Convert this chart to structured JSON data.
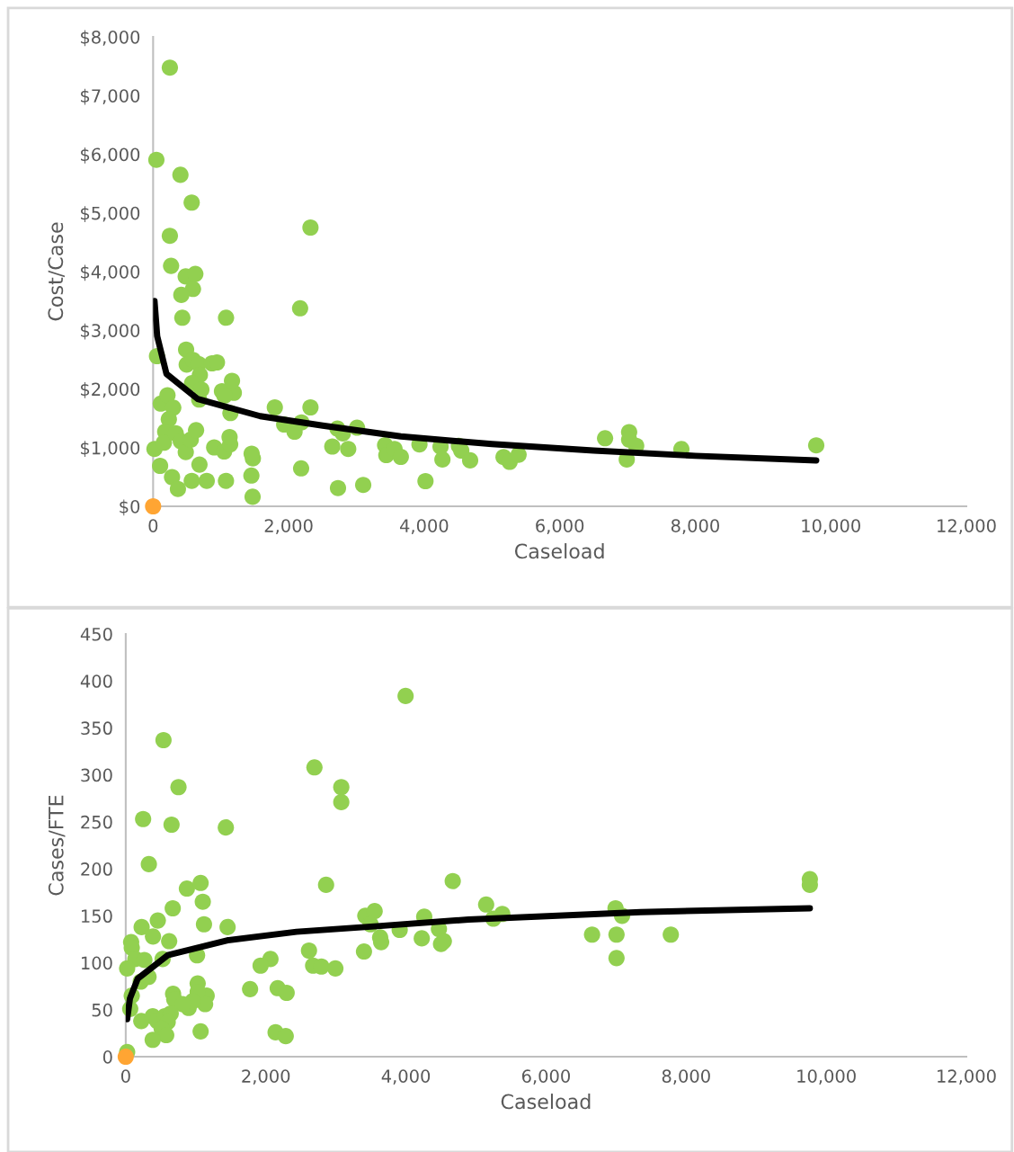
{
  "chart_data": [
    {
      "type": "scatter",
      "xlabel": "Caseload",
      "ylabel": "Cost/Case",
      "grid": false,
      "marker": "circle",
      "xlim": [
        0,
        12000
      ],
      "xticks": [
        0,
        {
          "value": 2000,
          "label": "2,000"
        },
        {
          "value": 4000,
          "label": "4,000"
        },
        {
          "value": 6000,
          "label": "6,000"
        },
        {
          "value": 8000,
          "label": "8,000"
        },
        {
          "value": 10000,
          "label": "10,000"
        },
        {
          "value": 12000,
          "label": "12,000"
        }
      ],
      "ylim": [
        0,
        8000
      ],
      "yticks": [
        {
          "value": 0,
          "label": "$0"
        },
        {
          "value": 1000,
          "label": "$1,000"
        },
        {
          "value": 2000,
          "label": "$2,000"
        },
        {
          "value": 3000,
          "label": "$3,000"
        },
        {
          "value": 4000,
          "label": "$4,000"
        },
        {
          "value": 5000,
          "label": "$5,000"
        },
        {
          "value": 6000,
          "label": "$6,000"
        },
        {
          "value": 7000,
          "label": "$7,000"
        },
        {
          "value": 8000,
          "label": "$8,000"
        }
      ],
      "series": [
        {
          "type": "scatter",
          "color": "#92d050",
          "x": [
            247,
            48,
            403,
            569,
            247,
            265,
            481,
            623,
            588,
            416,
            431,
            1076,
            2169,
            2322,
            57,
            487,
            496,
            588,
            671,
            690,
            869,
            942,
            574,
            712,
            680,
            1016,
            1191,
            1164,
            1141,
            1053,
            113,
            212,
            297,
            232,
            20,
            103,
            279,
            366,
            570,
            684,
            791,
            1075,
            1468,
            1450,
            1472,
            1454,
            178,
            159,
            334,
            408,
            482,
            556,
            634,
            901,
            1048,
            1137,
            1128,
            1796,
            2322,
            1934,
            2087,
            2189,
            2184,
            2728,
            3100,
            2644,
            2879,
            2720,
            2799,
            3009,
            3423,
            3441,
            3562,
            3655,
            3930,
            4019,
            4241,
            4269,
            4512,
            4547,
            4678,
            5171,
            5261,
            5393,
            6669,
            7024,
            7024,
            7128,
            6989,
            7795,
            9785
          ],
          "values": [
            7476,
            5905,
            5649,
            5176,
            4610,
            4098,
            3917,
            3960,
            3704,
            3603,
            3214,
            3214,
            3375,
            4751,
            2559,
            2671,
            2415,
            2495,
            2426,
            2239,
            2437,
            2452,
            2097,
            1989,
            1819,
            1962,
            1935,
            2138,
            1589,
            1885,
            1750,
            1893,
            1681,
            1484,
            978,
            690,
            498,
            296,
            434,
            711,
            434,
            434,
            162,
            524,
            817,
            897,
            1272,
            1084,
            1243,
            1110,
            924,
            1137,
            1297,
            1004,
            935,
            1057,
            1180,
            1686,
            1686,
            1395,
            1272,
            1430,
            647,
            311,
            365,
            1019,
            978,
            1324,
            1243,
            1340,
            1042,
            873,
            978,
            843,
            1056,
            429,
            1016,
            798,
            1031,
            950,
            783,
            840,
            759,
            880,
            1160,
            1264,
            1136,
            1031,
            798,
            975,
            1039
          ]
        },
        {
          "type": "scatter",
          "color": "#ffa533",
          "x": [
            0
          ],
          "values": [
            0
          ]
        },
        {
          "type": "line",
          "color": "#000000",
          "line_style": "solid",
          "marker": "none",
          "x": [
            20,
            60,
            197,
            657,
            1580,
            2502,
            3655,
            5000,
            6500,
            8000,
            9785
          ],
          "values": [
            3500,
            2900,
            2256,
            1830,
            1536,
            1376,
            1191,
            1060,
            950,
            860,
            782
          ]
        }
      ]
    },
    {
      "type": "scatter",
      "xlabel": "Caseload",
      "ylabel": "Cases/FTE",
      "grid": false,
      "marker": "circle",
      "xlim": [
        0,
        12000
      ],
      "xticks": [
        0,
        {
          "value": 2000,
          "label": "2,000"
        },
        {
          "value": 4000,
          "label": "4,000"
        },
        {
          "value": 6000,
          "label": "6,000"
        },
        {
          "value": 8000,
          "label": "8,000"
        },
        {
          "value": 10000,
          "label": "10,000"
        },
        {
          "value": 12000,
          "label": "12,000"
        }
      ],
      "ylim": [
        0,
        450
      ],
      "yticks": [
        0,
        50,
        100,
        150,
        200,
        250,
        300,
        350,
        400,
        450
      ],
      "series": [
        {
          "type": "scatter",
          "color": "#92d050",
          "x": [
            539,
            753,
            248,
            654,
            1429,
            330,
            873,
            1069,
            1100,
            671,
            458,
            227,
            1117,
            1454,
            389,
            620,
            77,
            86,
            137,
            266,
            526,
            1018,
            20,
            325,
            214,
            1775,
            2169,
            2297,
            2139,
            2284,
            1069,
            1027,
            1155,
            1133,
            898,
            676,
            693,
            1027,
            954,
            812,
            64,
            86,
            222,
            385,
            449,
            556,
            642,
            599,
            513,
            578,
            385,
            20,
            3995,
            2694,
            3077,
            3077,
            2860,
            4668,
            2616,
            2675,
            2793,
            2993,
            3401,
            3420,
            3553,
            3495,
            3632,
            3646,
            3911,
            4226,
            4261,
            4471,
            4501,
            4541,
            5145,
            5248,
            5375,
            6657,
            6992,
            7085,
            7006,
            7006,
            7781,
            9766,
            9766,
            2066,
            1925
          ],
          "values": [
            337,
            287,
            253,
            247,
            244,
            205,
            179,
            185,
            165,
            158,
            145,
            138,
            141,
            138,
            128,
            123,
            122,
            116,
            104,
            103,
            104,
            108,
            94,
            85,
            80,
            72,
            73,
            68,
            26,
            22,
            27,
            78,
            65,
            56,
            52,
            67,
            61,
            69,
            59,
            56,
            51,
            65,
            38,
            43,
            38,
            43,
            46,
            37,
            30,
            23,
            18,
            5,
            384,
            308,
            287,
            271,
            183,
            187,
            113,
            97,
            96,
            94,
            112,
            150,
            155,
            141,
            127,
            122,
            135,
            126,
            149,
            136,
            120,
            123,
            162,
            147,
            152,
            130,
            158,
            150,
            130,
            105,
            130,
            189,
            183,
            104,
            97
          ]
        },
        {
          "type": "scatter",
          "color": "#ffa533",
          "x": [
            0
          ],
          "values": [
            0
          ]
        },
        {
          "type": "line",
          "color": "#000000",
          "line_style": "solid",
          "marker": "none",
          "x": [
            20,
            60,
            171,
            599,
            1454,
            2438,
            3593,
            4894,
            7350,
            9766
          ],
          "values": [
            40,
            62,
            83,
            108,
            124,
            133,
            139,
            146,
            154,
            158
          ]
        }
      ]
    }
  ]
}
